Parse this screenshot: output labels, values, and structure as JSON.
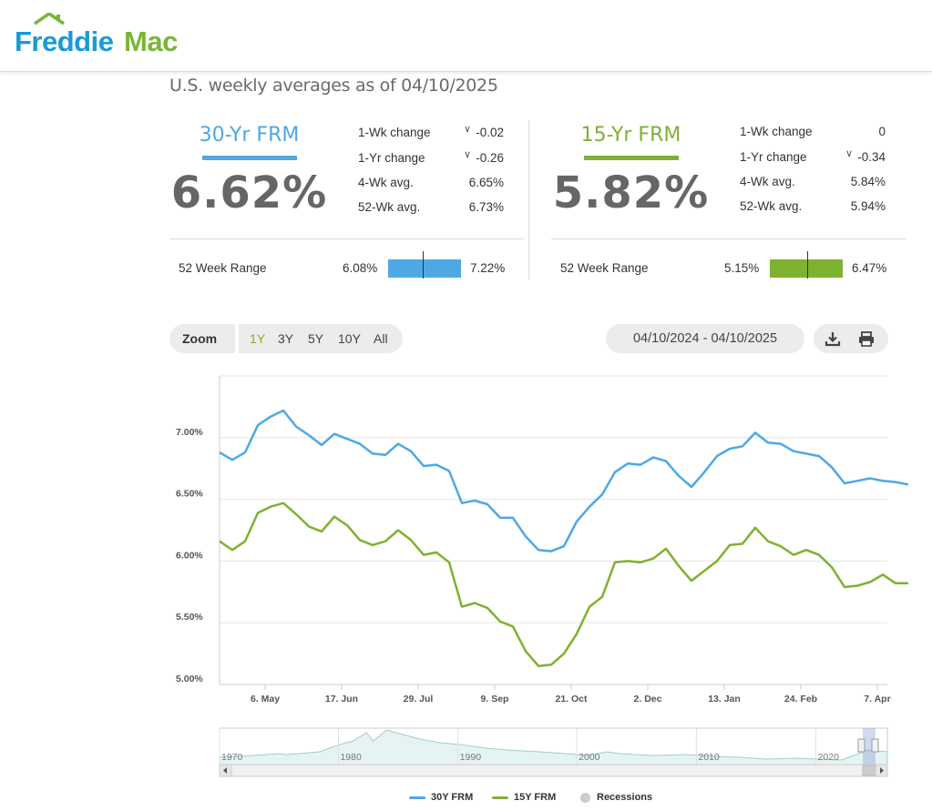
{
  "brand": {
    "name_part1": "Freddie",
    "name_part2": "Mac",
    "color_blue": "#1a9ad6",
    "color_green": "#7ab53a"
  },
  "header": {
    "subtitle": "U.S. weekly averages as of 04/10/2025"
  },
  "rates": [
    {
      "title": "30-Yr FRM",
      "rate": "6.62%",
      "color": "#4ea8e4",
      "stats": [
        {
          "label": "1-Wk change",
          "value": "-0.02",
          "arrow": true
        },
        {
          "label": "1-Yr change",
          "value": "-0.26",
          "arrow": true
        },
        {
          "label": "4-Wk avg.",
          "value": "6.65%",
          "arrow": false
        },
        {
          "label": "52-Wk avg.",
          "value": "6.73%",
          "arrow": false
        }
      ],
      "range_label": "52 Week Range",
      "range_low": "6.08%",
      "range_high": "7.22%",
      "range_current_value": 6.62,
      "range_low_value": 6.08,
      "range_high_value": 7.22
    },
    {
      "title": "15-Yr FRM",
      "rate": "5.82%",
      "color": "#7fb131",
      "stats": [
        {
          "label": "1-Wk change",
          "value": "0",
          "arrow": false
        },
        {
          "label": "1-Yr change",
          "value": "-0.34",
          "arrow": true
        },
        {
          "label": "4-Wk avg.",
          "value": "5.84%",
          "arrow": false
        },
        {
          "label": "52-Wk avg.",
          "value": "5.94%",
          "arrow": false
        }
      ],
      "range_label": "52 Week Range",
      "range_low": "5.15%",
      "range_high": "6.47%",
      "range_current_value": 5.82,
      "range_low_value": 5.15,
      "range_high_value": 6.47
    }
  ],
  "toolbar": {
    "zoom_label": "Zoom",
    "zoom_options": [
      "1Y",
      "3Y",
      "5Y",
      "10Y",
      "All"
    ],
    "zoom_active": "1Y",
    "date_range": "04/10/2024 - 04/10/2025",
    "icons": [
      "download-icon",
      "print-icon"
    ]
  },
  "chart_data": {
    "type": "line",
    "title": "",
    "xlabel": "",
    "ylabel": "",
    "ylim": [
      5.0,
      7.5
    ],
    "y_ticks": [
      "5.00%",
      "5.50%",
      "6.00%",
      "6.50%",
      "7.00%"
    ],
    "x_ticks": [
      "6. May",
      "17. Jun",
      "29. Jul",
      "9. Sep",
      "21. Oct",
      "2. Dec",
      "13. Jan",
      "24. Feb",
      "7. Apr"
    ],
    "x_start": "2024-04-11",
    "x_end": "2025-04-10",
    "series": [
      {
        "name": "30Y FRM",
        "color": "#4ea8e4",
        "values": [
          6.88,
          6.82,
          6.88,
          7.1,
          7.17,
          7.22,
          7.09,
          7.02,
          6.94,
          7.03,
          6.99,
          6.95,
          6.87,
          6.86,
          6.95,
          6.89,
          6.77,
          6.78,
          6.73,
          6.47,
          6.49,
          6.46,
          6.35,
          6.35,
          6.2,
          6.09,
          6.08,
          6.12,
          6.32,
          6.44,
          6.54,
          6.72,
          6.79,
          6.78,
          6.84,
          6.81,
          6.69,
          6.6,
          6.72,
          6.85,
          6.91,
          6.93,
          7.04,
          6.96,
          6.95,
          6.89,
          6.87,
          6.85,
          6.76,
          6.63,
          6.65,
          6.67,
          6.65,
          6.64,
          6.62
        ]
      },
      {
        "name": "15Y FRM",
        "color": "#7fb131",
        "values": [
          6.16,
          6.09,
          6.16,
          6.39,
          6.44,
          6.47,
          6.38,
          6.28,
          6.24,
          6.36,
          6.29,
          6.17,
          6.13,
          6.16,
          6.25,
          6.17,
          6.05,
          6.07,
          5.99,
          5.63,
          5.66,
          5.62,
          5.51,
          5.47,
          5.27,
          5.15,
          5.16,
          5.25,
          5.41,
          5.63,
          5.71,
          5.99,
          6.0,
          5.99,
          6.02,
          6.1,
          5.96,
          5.84,
          5.92,
          6.0,
          6.13,
          6.14,
          6.27,
          6.16,
          6.12,
          6.05,
          6.09,
          6.05,
          5.95,
          5.79,
          5.8,
          5.83,
          5.89,
          5.82,
          5.82
        ]
      }
    ],
    "navigator": {
      "x_labels": [
        "1970",
        "1980",
        "1990",
        "2000",
        "2010",
        "2020"
      ]
    },
    "legend": [
      "30Y FRM",
      "15Y FRM",
      "Recessions"
    ],
    "legend_position": "bottom-center"
  }
}
